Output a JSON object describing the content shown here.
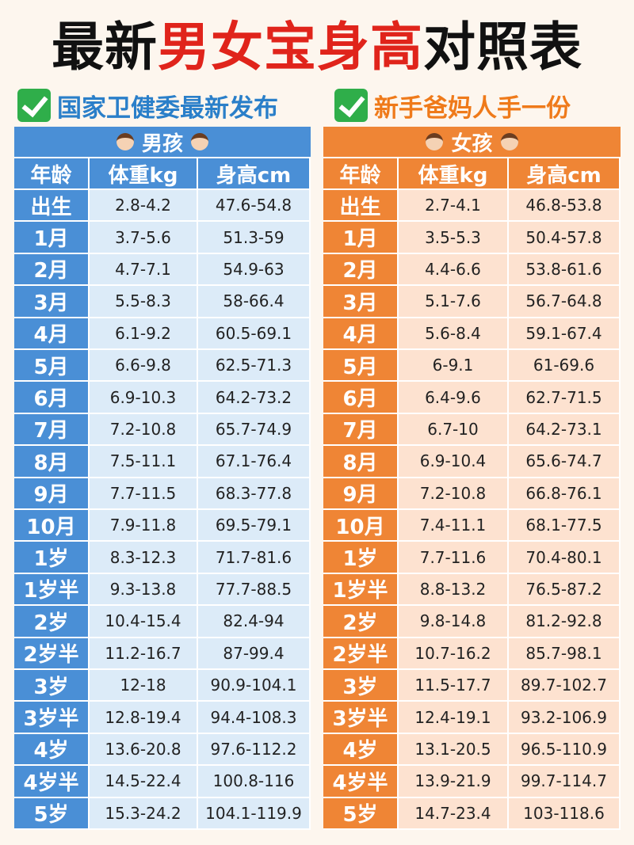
{
  "title": {
    "parts": [
      "最新",
      "男女宝身高",
      "对照表"
    ]
  },
  "subtitle": {
    "left": "国家卫健委最新发布",
    "right": "新手爸妈人手一份"
  },
  "tables": [
    {
      "label": "男孩",
      "columns": [
        "年龄",
        "体重kg",
        "身高cm"
      ],
      "rows": [
        [
          "出生",
          "2.8-4.2",
          "47.6-54.8"
        ],
        [
          "1月",
          "3.7-5.6",
          "51.3-59"
        ],
        [
          "2月",
          "4.7-7.1",
          "54.9-63"
        ],
        [
          "3月",
          "5.5-8.3",
          "58-66.4"
        ],
        [
          "4月",
          "6.1-9.2",
          "60.5-69.1"
        ],
        [
          "5月",
          "6.6-9.8",
          "62.5-71.3"
        ],
        [
          "6月",
          "6.9-10.3",
          "64.2-73.2"
        ],
        [
          "7月",
          "7.2-10.8",
          "65.7-74.9"
        ],
        [
          "8月",
          "7.5-11.1",
          "67.1-76.4"
        ],
        [
          "9月",
          "7.7-11.5",
          "68.3-77.8"
        ],
        [
          "10月",
          "7.9-11.8",
          "69.5-79.1"
        ],
        [
          "1岁",
          "8.3-12.3",
          "71.7-81.6"
        ],
        [
          "1岁半",
          "9.3-13.8",
          "77.7-88.5"
        ],
        [
          "2岁",
          "10.4-15.4",
          "82.4-94"
        ],
        [
          "2岁半",
          "11.2-16.7",
          "87-99.4"
        ],
        [
          "3岁",
          "12-18",
          "90.9-104.1"
        ],
        [
          "3岁半",
          "12.8-19.4",
          "94.4-108.3"
        ],
        [
          "4岁",
          "13.6-20.8",
          "97.6-112.2"
        ],
        [
          "4岁半",
          "14.5-22.4",
          "100.8-116"
        ],
        [
          "5岁",
          "15.3-24.2",
          "104.1-119.9"
        ]
      ]
    },
    {
      "label": "女孩",
      "columns": [
        "年龄",
        "体重kg",
        "身高cm"
      ],
      "rows": [
        [
          "出生",
          "2.7-4.1",
          "46.8-53.8"
        ],
        [
          "1月",
          "3.5-5.3",
          "50.4-57.8"
        ],
        [
          "2月",
          "4.4-6.6",
          "53.8-61.6"
        ],
        [
          "3月",
          "5.1-7.6",
          "56.7-64.8"
        ],
        [
          "4月",
          "5.6-8.4",
          "59.1-67.4"
        ],
        [
          "5月",
          "6-9.1",
          "61-69.6"
        ],
        [
          "6月",
          "6.4-9.6",
          "62.7-71.5"
        ],
        [
          "7月",
          "6.7-10",
          "64.2-73.1"
        ],
        [
          "8月",
          "6.9-10.4",
          "65.6-74.7"
        ],
        [
          "9月",
          "7.2-10.8",
          "66.8-76.1"
        ],
        [
          "10月",
          "7.4-11.1",
          "68.1-77.5"
        ],
        [
          "1岁",
          "7.7-11.6",
          "70.4-80.1"
        ],
        [
          "1岁半",
          "8.8-13.2",
          "76.5-87.2"
        ],
        [
          "2岁",
          "9.8-14.8",
          "81.2-92.8"
        ],
        [
          "2岁半",
          "10.7-16.2",
          "85.7-98.1"
        ],
        [
          "3岁",
          "11.5-17.7",
          "89.7-102.7"
        ],
        [
          "3岁半",
          "12.4-19.1",
          "93.2-106.9"
        ],
        [
          "4岁",
          "13.1-20.5",
          "96.5-110.9"
        ],
        [
          "4岁半",
          "13.9-21.9",
          "99.7-114.7"
        ],
        [
          "5岁",
          "14.7-23.4",
          "103-118.6"
        ]
      ]
    }
  ]
}
